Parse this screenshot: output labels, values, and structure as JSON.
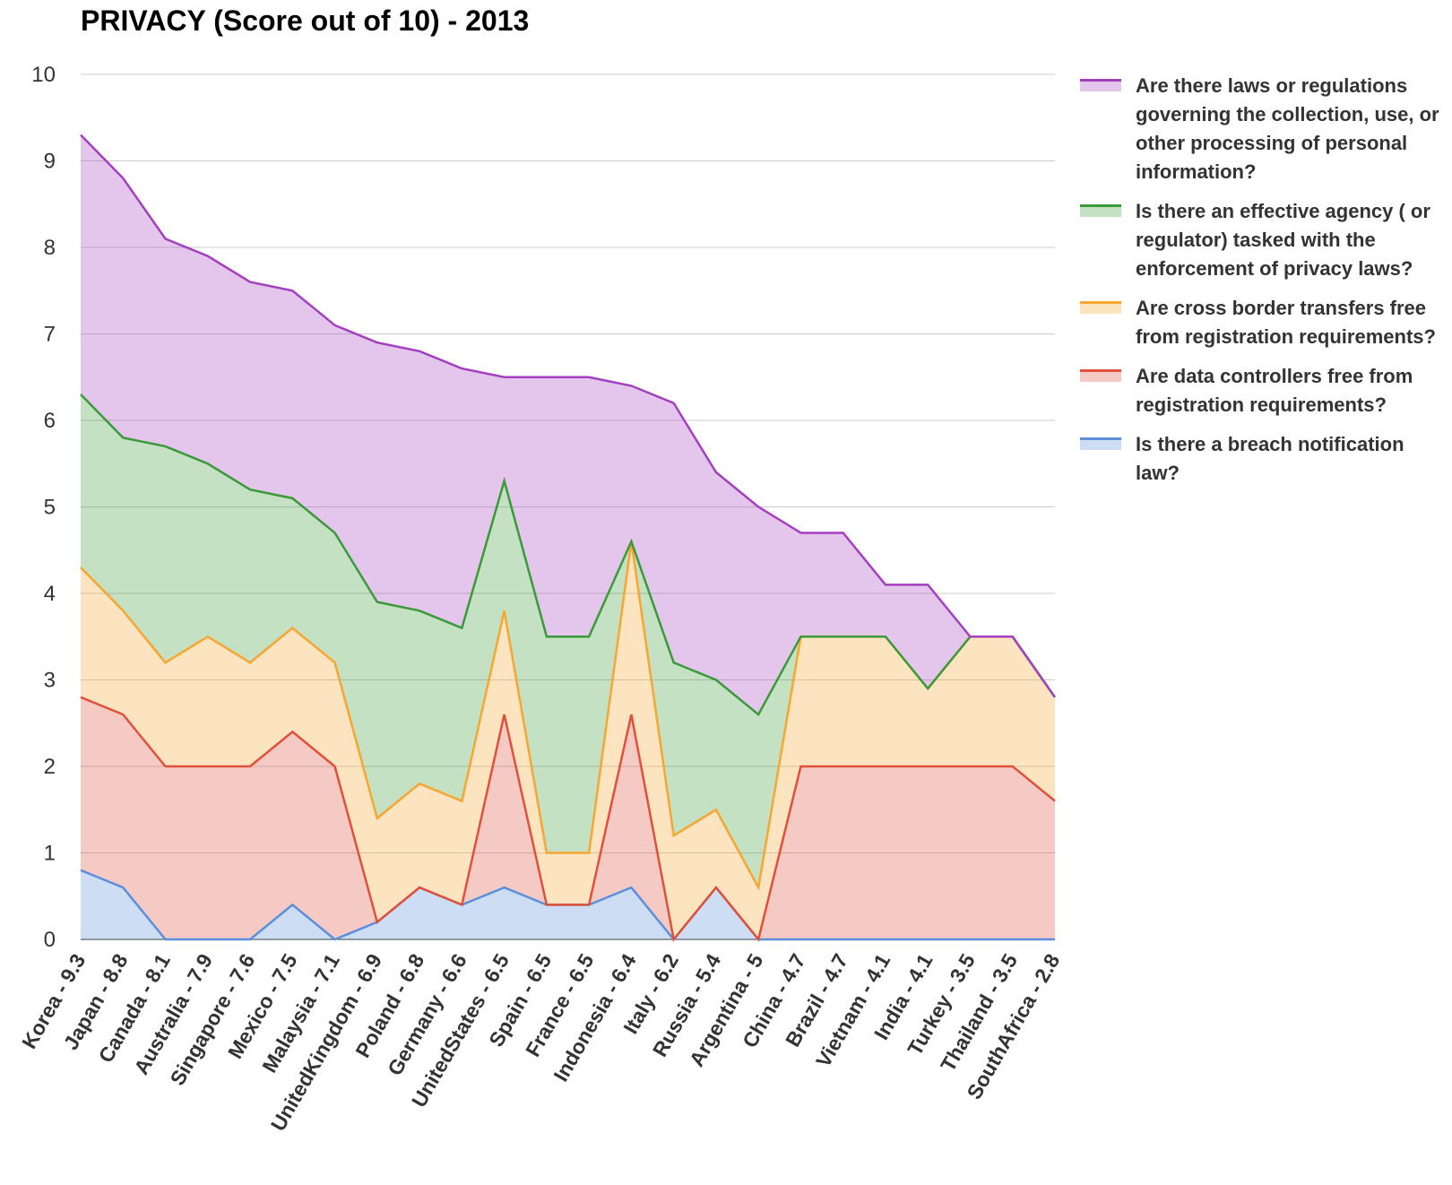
{
  "chart_data": {
    "type": "stacked_area",
    "title": "PRIVACY (Score out of 10) - 2013",
    "categories": [
      "Korea - 9.3",
      "Japan - 8.8",
      "Canada - 8.1",
      "Australia - 7.9",
      "Singapore - 7.6",
      "Mexico - 7.5",
      "Malaysia - 7.1",
      "UnitedKingdom - 6.9",
      "Poland - 6.8",
      "Germany - 6.6",
      "UnitedStates - 6.5",
      "Spain - 6.5",
      "France - 6.5",
      "Indonesia - 6.4",
      "Italy - 6.2",
      "Russia - 5.4",
      "Argentina - 5",
      "China - 4.7",
      "Brazil - 4.7",
      "Vietnam - 4.1",
      "India - 4.1",
      "Turkey - 3.5",
      "Thailand - 3.5",
      "SouthAfrica - 2.8"
    ],
    "series": [
      {
        "name": "Are there laws or regulations governing the collection, use, or other processing of personal information?",
        "color": "#a43fbf",
        "values": [
          3.0,
          3.0,
          2.4,
          2.4,
          2.4,
          2.4,
          2.4,
          3.0,
          3.0,
          3.0,
          1.2,
          3.0,
          3.0,
          1.8,
          3.0,
          2.4,
          2.4,
          1.2,
          1.2,
          0.6,
          1.2,
          0,
          0,
          0
        ]
      },
      {
        "name": "Is there an effective agency ( or regulator) tasked with the enforcement of privacy laws?",
        "color": "#3a9a3a",
        "values": [
          2.0,
          2.0,
          2.5,
          2.0,
          2.0,
          1.5,
          1.5,
          2.5,
          2.0,
          2.0,
          1.5,
          2.5,
          2.5,
          0,
          2.0,
          1.5,
          2.0,
          0,
          0,
          0,
          0,
          0,
          0,
          0
        ]
      },
      {
        "name": "Are cross border transfers free from registration requirements?",
        "color": "#f6a631",
        "values": [
          1.5,
          1.2,
          1.2,
          1.5,
          1.2,
          1.2,
          1.2,
          1.2,
          1.2,
          1.2,
          1.2,
          0.6,
          0.6,
          2.0,
          1.2,
          0.9,
          0.6,
          1.5,
          1.5,
          1.5,
          0.9,
          1.5,
          1.5,
          1.2
        ]
      },
      {
        "name": "Are data controllers free from registration requirements?",
        "color": "#e0503a",
        "values": [
          2.0,
          2.0,
          2.0,
          2.0,
          2.0,
          2.0,
          2.0,
          0,
          0,
          0,
          2.0,
          0,
          0,
          2.0,
          0,
          0,
          0,
          2.0,
          2.0,
          2.0,
          2.0,
          2.0,
          2.0,
          1.6
        ]
      },
      {
        "name": "Is there a breach notification law?",
        "color": "#5b8fdc",
        "values": [
          0.8,
          0.6,
          0,
          0,
          0,
          0.4,
          0,
          0.2,
          0.6,
          0.4,
          0.6,
          0.4,
          0.4,
          0.6,
          0,
          0.6,
          0,
          0,
          0,
          0,
          0,
          0,
          0,
          0
        ]
      }
    ],
    "ylim": [
      0,
      10
    ],
    "yticks": [
      0,
      1,
      2,
      3,
      4,
      5,
      6,
      7,
      8,
      9,
      10
    ],
    "grid": true,
    "legend": "right"
  }
}
